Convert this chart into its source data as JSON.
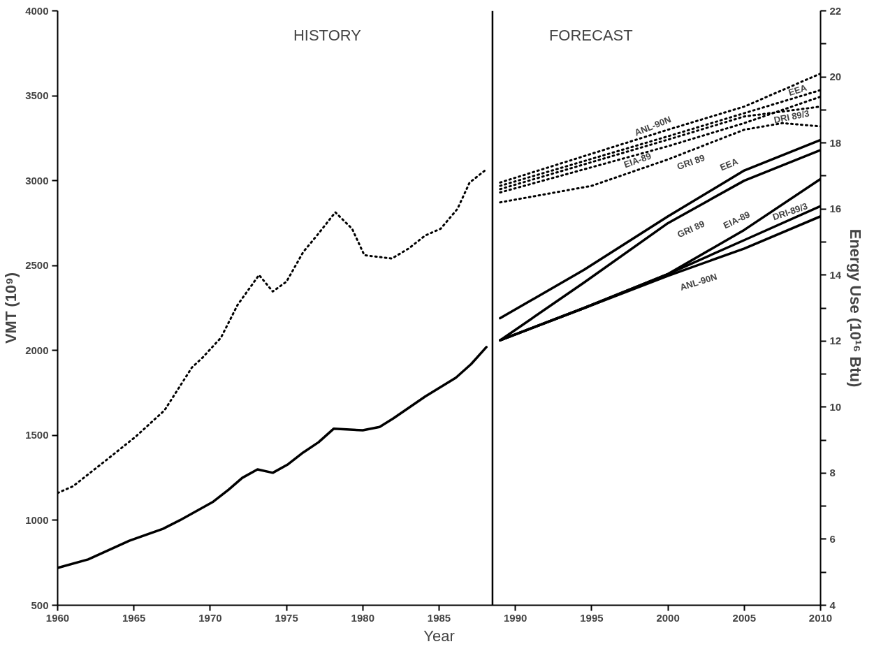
{
  "chart_data": {
    "type": "line",
    "xlabel": "Year",
    "ylabel": "VMT (10⁹)",
    "y2label": "Energy Use (10¹⁶ Btu)",
    "xlim": [
      1960,
      2010
    ],
    "xticks": [
      1960,
      1965,
      1970,
      1975,
      1980,
      1985,
      1990,
      1995,
      2000,
      2005,
      2010
    ],
    "ylim": [
      500,
      4000
    ],
    "yticks": [
      500,
      1000,
      1500,
      2000,
      2500,
      3000,
      3500,
      4000
    ],
    "y2lim": [
      4,
      22
    ],
    "y2ticks": [
      4,
      {
        "value": 5,
        "label": null
      },
      6,
      {
        "value": 7,
        "label": null
      },
      8,
      {
        "value": 9,
        "label": null
      },
      10,
      {
        "value": 11,
        "label": null
      },
      12,
      {
        "value": 13,
        "label": null
      },
      14,
      {
        "value": 15,
        "label": null
      },
      16,
      {
        "value": 17,
        "label": null
      },
      18,
      {
        "value": 19,
        "label": null
      },
      20,
      {
        "value": 21,
        "label": null
      },
      22
    ],
    "grid": false,
    "legend": false,
    "marker": "none",
    "series": [
      {
        "color": "#000000",
        "line_style": "solid",
        "x": [
          1960,
          1962,
          1964.7,
          1966.9,
          1968,
          1970.2,
          1971.2,
          1972.1,
          1973.1,
          1974.1,
          1975.1,
          1976.1,
          1977.1,
          1978.1,
          1980,
          1981.1,
          1982,
          1984.1,
          1986.1,
          1987.1,
          1988.1
        ],
        "values": [
          720,
          770,
          880,
          950,
          1000,
          1110,
          1180,
          1250,
          1300,
          1280,
          1330,
          1400,
          1460,
          1540,
          1530,
          1550,
          1600,
          1730,
          1840,
          1920,
          2020
        ]
      },
      {
        "color": "#000000",
        "line_style": "dotted",
        "axis": "y2",
        "x": [
          1960,
          1961,
          1963.2,
          1965.1,
          1967,
          1968.8,
          1969.5,
          1970.7,
          1971.8,
          1973.2,
          1974.1,
          1975,
          1976.1,
          1977,
          1978.2,
          1979.3,
          1980.1,
          1981.9,
          1983,
          1984.1,
          1985.1,
          1986.2,
          1987,
          1988.1
        ],
        "values": [
          7.4,
          7.6,
          8.4,
          9.1,
          9.9,
          11.2,
          11.5,
          12.1,
          13.1,
          14.0,
          13.5,
          13.8,
          14.7,
          15.2,
          15.9,
          15.4,
          14.6,
          14.5,
          14.8,
          15.2,
          15.4,
          16.0,
          16.8,
          17.2
        ]
      },
      {
        "name": "EEA",
        "color": "#000000",
        "line_style": "solid",
        "x": [
          1989,
          1994.5,
          2000,
          2005,
          2010
        ],
        "values": [
          2190,
          2475,
          2790,
          3060,
          3240
        ]
      },
      {
        "name": "GRI 89",
        "color": "#000000",
        "line_style": "solid",
        "x": [
          1989,
          1994.5,
          2000,
          2005,
          2010
        ],
        "values": [
          2060,
          2400,
          2750,
          3000,
          3180
        ]
      },
      {
        "name": "EIA-89",
        "color": "#000000",
        "line_style": "solid",
        "x": [
          1989,
          1994.5,
          2000,
          2005,
          2010
        ],
        "values": [
          2060,
          2250,
          2450,
          2710,
          3010
        ]
      },
      {
        "name": "DRI-89/3",
        "color": "#000000",
        "line_style": "solid",
        "x": [
          1989,
          1994.5,
          2000,
          2005,
          2010
        ],
        "values": [
          2060,
          2250,
          2450,
          2650,
          2850
        ]
      },
      {
        "name": "ANL-90N",
        "color": "#000000",
        "line_style": "solid",
        "x": [
          1989,
          1994.5,
          2000,
          2005,
          2010
        ],
        "values": [
          2060,
          2250,
          2440,
          2600,
          2790
        ]
      },
      {
        "name": "ANL-90N",
        "color": "#000000",
        "line_style": "dotted",
        "axis": "y2",
        "x": [
          1989,
          2000,
          2005,
          2010
        ],
        "values": [
          16.8,
          18.4,
          19.1,
          20.1
        ]
      },
      {
        "name": "EEA",
        "color": "#000000",
        "line_style": "dotted",
        "axis": "y2",
        "x": [
          1989,
          2000,
          2005,
          2010
        ],
        "values": [
          16.7,
          18.2,
          18.9,
          19.6
        ]
      },
      {
        "name": "EIA-89",
        "color": "#000000",
        "line_style": "dotted",
        "axis": "y2",
        "x": [
          1989,
          2000,
          2005,
          2010
        ],
        "values": [
          16.5,
          17.9,
          18.6,
          19.4
        ]
      },
      {
        "name": "DRI 89/3",
        "color": "#000000",
        "line_style": "dotted",
        "axis": "y2",
        "x": [
          1989,
          2000,
          2005,
          2010
        ],
        "values": [
          16.6,
          18.1,
          18.8,
          19.1
        ]
      },
      {
        "name": "GRI 89",
        "color": "#000000",
        "line_style": "dotted",
        "axis": "y2",
        "x": [
          1989,
          1995,
          2000,
          2005,
          2007.5,
          2010
        ],
        "values": [
          16.2,
          16.7,
          17.5,
          18.4,
          18.6,
          18.5
        ]
      }
    ],
    "ref_lines": [
      {
        "axis": "x",
        "value": 1988.5,
        "color": "#000000",
        "line_style": "solid"
      }
    ],
    "annotations": [
      "HISTORY",
      "FORECAST"
    ]
  }
}
